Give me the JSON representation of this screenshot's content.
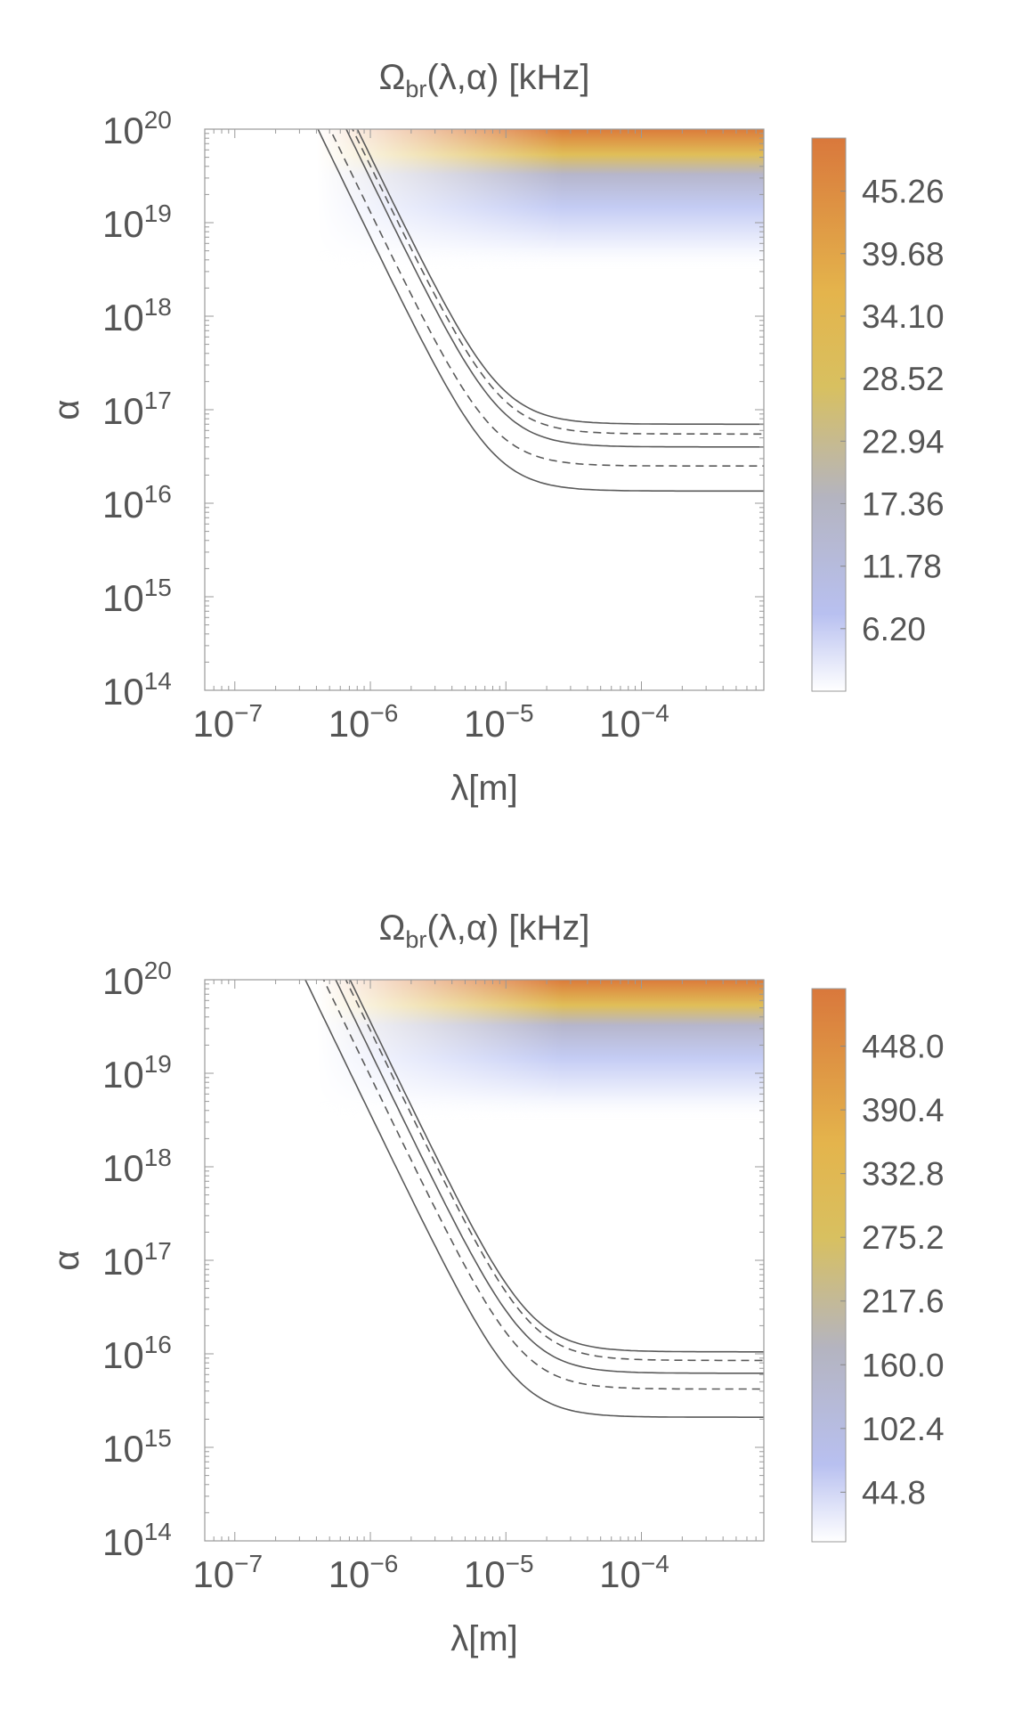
{
  "chart_data": [
    {
      "type": "heatmap",
      "title_main": "Ω",
      "title_sub": "br",
      "title_rest": "(λ,α) [kHz]",
      "xlabel": "λ[m]",
      "ylabel": "α",
      "xscale": "log",
      "yscale": "log",
      "xlim": [
        6e-08,
        0.0008
      ],
      "ylim": [
        100000000000000.0,
        1e+20
      ],
      "x_ticks": [
        {
          "value": 1e-07,
          "base": "10",
          "exp": "−7"
        },
        {
          "value": 1e-06,
          "base": "10",
          "exp": "−6"
        },
        {
          "value": 1e-05,
          "base": "10",
          "exp": "−5"
        },
        {
          "value": 0.0001,
          "base": "10",
          "exp": "−4"
        }
      ],
      "y_ticks": [
        {
          "value": 1e+20,
          "base": "10",
          "exp": "20"
        },
        {
          "value": 1e+19,
          "base": "10",
          "exp": "19"
        },
        {
          "value": 1e+18,
          "base": "10",
          "exp": "18"
        },
        {
          "value": 1e+17,
          "base": "10",
          "exp": "17"
        },
        {
          "value": 1e+16,
          "base": "10",
          "exp": "16"
        },
        {
          "value": 1000000000000000.0,
          "base": "10",
          "exp": "15"
        },
        {
          "value": 100000000000000.0,
          "base": "10",
          "exp": "14"
        }
      ],
      "colorbar": {
        "min": 0.62,
        "max": 50.0,
        "tick_labels": [
          "6.20",
          "11.78",
          "17.36",
          "22.94",
          "28.52",
          "34.10",
          "39.68",
          "45.26"
        ],
        "tick_values": [
          6.2,
          11.78,
          17.36,
          22.94,
          28.52,
          34.1,
          39.68,
          45.26
        ]
      },
      "fill_threshold_alpha": 3e+18,
      "curves": [
        {
          "style": "solid",
          "knee_lambda": 9e-06,
          "plateau_alpha": 7e+16
        },
        {
          "style": "dashed",
          "knee_lambda": 9e-06,
          "plateau_alpha": 5.5e+16
        },
        {
          "style": "solid",
          "knee_lambda": 9e-06,
          "plateau_alpha": 4e+16
        },
        {
          "style": "dashed",
          "knee_lambda": 8e-06,
          "plateau_alpha": 2.5e+16
        },
        {
          "style": "solid",
          "knee_lambda": 8e-06,
          "plateau_alpha": 1.35e+16
        }
      ],
      "curve_slope_decades": 3.0
    },
    {
      "type": "heatmap",
      "title_main": "Ω",
      "title_sub": "br",
      "title_rest": "(λ,α) [kHz]",
      "xlabel": "λ[m]",
      "ylabel": "α",
      "xscale": "log",
      "yscale": "log",
      "xlim": [
        6e-08,
        0.0008
      ],
      "ylim": [
        100000000000000.0,
        1e+20
      ],
      "x_ticks": [
        {
          "value": 1e-07,
          "base": "10",
          "exp": "−7"
        },
        {
          "value": 1e-06,
          "base": "10",
          "exp": "−6"
        },
        {
          "value": 1e-05,
          "base": "10",
          "exp": "−5"
        },
        {
          "value": 0.0001,
          "base": "10",
          "exp": "−4"
        }
      ],
      "y_ticks": [
        {
          "value": 1e+20,
          "base": "10",
          "exp": "20"
        },
        {
          "value": 1e+19,
          "base": "10",
          "exp": "19"
        },
        {
          "value": 1e+18,
          "base": "10",
          "exp": "18"
        },
        {
          "value": 1e+17,
          "base": "10",
          "exp": "17"
        },
        {
          "value": 1e+16,
          "base": "10",
          "exp": "16"
        },
        {
          "value": 1000000000000000.0,
          "base": "10",
          "exp": "15"
        },
        {
          "value": 100000000000000.0,
          "base": "10",
          "exp": "14"
        }
      ],
      "colorbar": {
        "min": 0.0,
        "max": 500.0,
        "tick_labels": [
          "44.8",
          "102.4",
          "160.0",
          "217.6",
          "275.2",
          "332.8",
          "390.4",
          "448.0"
        ],
        "tick_values": [
          44.8,
          102.4,
          160.0,
          217.6,
          275.2,
          332.8,
          390.4,
          448.0
        ]
      },
      "fill_threshold_alpha": 3e+18,
      "curves": [
        {
          "style": "solid",
          "knee_lambda": 1.5e-05,
          "plateau_alpha": 1.05e+16
        },
        {
          "style": "dashed",
          "knee_lambda": 1.5e-05,
          "plateau_alpha": 8500000000000000.0
        },
        {
          "style": "solid",
          "knee_lambda": 1.4e-05,
          "plateau_alpha": 6200000000000000.0
        },
        {
          "style": "dashed",
          "knee_lambda": 1.3e-05,
          "plateau_alpha": 4200000000000000.0
        },
        {
          "style": "solid",
          "knee_lambda": 1.2e-05,
          "plateau_alpha": 2100000000000000.0
        }
      ],
      "curve_slope_decades": 3.0
    }
  ]
}
